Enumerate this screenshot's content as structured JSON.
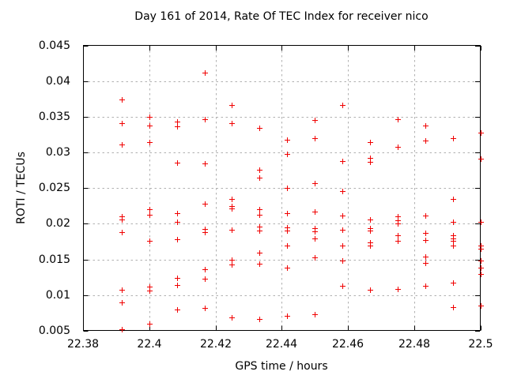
{
  "chart_data": {
    "type": "scatter",
    "title": "Day 161 of 2014, Rate Of TEC Index for receiver nico",
    "xlabel": "GPS time / hours",
    "ylabel": "ROTI / TECUs",
    "xlim": [
      22.38,
      22.5
    ],
    "ylim": [
      0.005,
      0.045
    ],
    "grid": true,
    "legend": "none",
    "marker_shape": "plus",
    "colors": {
      "marker": "#f00000",
      "grid": "#b0b0b0",
      "axis": "#000000",
      "text": "#000000",
      "background": "#ffffff"
    },
    "x_ticks": [
      {
        "value": 22.38,
        "label": "22.38"
      },
      {
        "value": 22.4,
        "label": "22.4"
      },
      {
        "value": 22.42,
        "label": "22.42"
      },
      {
        "value": 22.44,
        "label": "22.44"
      },
      {
        "value": 22.46,
        "label": "22.46"
      },
      {
        "value": 22.48,
        "label": "22.48"
      },
      {
        "value": 22.5,
        "label": "22.5"
      }
    ],
    "y_ticks": [
      {
        "value": 0.005,
        "label": "0.005"
      },
      {
        "value": 0.01,
        "label": "0.01"
      },
      {
        "value": 0.015,
        "label": "0.015"
      },
      {
        "value": 0.02,
        "label": "0.02"
      },
      {
        "value": 0.025,
        "label": "0.025"
      },
      {
        "value": 0.03,
        "label": "0.03"
      },
      {
        "value": 0.035,
        "label": "0.035"
      },
      {
        "value": 0.04,
        "label": "0.04"
      },
      {
        "value": 0.045,
        "label": "0.045"
      }
    ],
    "series": [
      {
        "name": "ROTI",
        "points": [
          [
            22.3917,
            0.0374
          ],
          [
            22.3917,
            0.0341
          ],
          [
            22.3917,
            0.0311
          ],
          [
            22.3917,
            0.021
          ],
          [
            22.3917,
            0.0206
          ],
          [
            22.3917,
            0.0188
          ],
          [
            22.3917,
            0.0107
          ],
          [
            22.3917,
            0.009
          ],
          [
            22.3917,
            0.0052
          ],
          [
            22.4,
            0.035
          ],
          [
            22.4,
            0.0338
          ],
          [
            22.4,
            0.0314
          ],
          [
            22.4,
            0.022
          ],
          [
            22.4,
            0.0213
          ],
          [
            22.4,
            0.0176
          ],
          [
            22.4,
            0.0112
          ],
          [
            22.4,
            0.0106
          ],
          [
            22.4,
            0.006
          ],
          [
            22.4083,
            0.0343
          ],
          [
            22.4083,
            0.0337
          ],
          [
            22.4083,
            0.0286
          ],
          [
            22.4083,
            0.0215
          ],
          [
            22.4083,
            0.0203
          ],
          [
            22.4083,
            0.0178
          ],
          [
            22.4083,
            0.0124
          ],
          [
            22.4083,
            0.0114
          ],
          [
            22.4083,
            0.008
          ],
          [
            22.4167,
            0.0412
          ],
          [
            22.4167,
            0.0346
          ],
          [
            22.4167,
            0.0285
          ],
          [
            22.4167,
            0.0228
          ],
          [
            22.4167,
            0.0193
          ],
          [
            22.4167,
            0.0188
          ],
          [
            22.4167,
            0.0136
          ],
          [
            22.4167,
            0.0123
          ],
          [
            22.4167,
            0.0082
          ],
          [
            22.425,
            0.0366
          ],
          [
            22.425,
            0.0341
          ],
          [
            22.425,
            0.0235
          ],
          [
            22.425,
            0.0225
          ],
          [
            22.425,
            0.0222
          ],
          [
            22.425,
            0.0192
          ],
          [
            22.425,
            0.015
          ],
          [
            22.425,
            0.0143
          ],
          [
            22.425,
            0.0069
          ],
          [
            22.4333,
            0.0334
          ],
          [
            22.4333,
            0.0276
          ],
          [
            22.4333,
            0.0265
          ],
          [
            22.4333,
            0.022
          ],
          [
            22.4333,
            0.0213
          ],
          [
            22.4333,
            0.0196
          ],
          [
            22.4333,
            0.0191
          ],
          [
            22.4333,
            0.016
          ],
          [
            22.4333,
            0.0144
          ],
          [
            22.4333,
            0.0067
          ],
          [
            22.4417,
            0.0318
          ],
          [
            22.4417,
            0.0298
          ],
          [
            22.4417,
            0.025
          ],
          [
            22.4417,
            0.0215
          ],
          [
            22.4417,
            0.0195
          ],
          [
            22.4417,
            0.019
          ],
          [
            22.4417,
            0.017
          ],
          [
            22.4417,
            0.0138
          ],
          [
            22.4417,
            0.0071
          ],
          [
            22.45,
            0.0345
          ],
          [
            22.45,
            0.032
          ],
          [
            22.45,
            0.0257
          ],
          [
            22.45,
            0.0217
          ],
          [
            22.45,
            0.0194
          ],
          [
            22.45,
            0.0189
          ],
          [
            22.45,
            0.0179
          ],
          [
            22.45,
            0.0153
          ],
          [
            22.45,
            0.0073
          ],
          [
            22.4583,
            0.0366
          ],
          [
            22.4583,
            0.0288
          ],
          [
            22.4583,
            0.0246
          ],
          [
            22.4583,
            0.0211
          ],
          [
            22.4583,
            0.0192
          ],
          [
            22.4583,
            0.0169
          ],
          [
            22.4583,
            0.0148
          ],
          [
            22.4583,
            0.0113
          ],
          [
            22.4667,
            0.0314
          ],
          [
            22.4667,
            0.0292
          ],
          [
            22.4667,
            0.0287
          ],
          [
            22.4667,
            0.0206
          ],
          [
            22.4667,
            0.0194
          ],
          [
            22.4667,
            0.019
          ],
          [
            22.4667,
            0.0174
          ],
          [
            22.4667,
            0.0169
          ],
          [
            22.4667,
            0.0107
          ],
          [
            22.475,
            0.0346
          ],
          [
            22.475,
            0.0308
          ],
          [
            22.475,
            0.021
          ],
          [
            22.475,
            0.0205
          ],
          [
            22.475,
            0.02
          ],
          [
            22.475,
            0.0184
          ],
          [
            22.475,
            0.0176
          ],
          [
            22.475,
            0.0109
          ],
          [
            22.4833,
            0.0338
          ],
          [
            22.4833,
            0.0317
          ],
          [
            22.4833,
            0.0211
          ],
          [
            22.4833,
            0.0187
          ],
          [
            22.4833,
            0.0177
          ],
          [
            22.4833,
            0.0154
          ],
          [
            22.4833,
            0.0145
          ],
          [
            22.4833,
            0.0113
          ],
          [
            22.4917,
            0.032
          ],
          [
            22.4917,
            0.0235
          ],
          [
            22.4917,
            0.0203
          ],
          [
            22.4917,
            0.0184
          ],
          [
            22.4917,
            0.018
          ],
          [
            22.4917,
            0.0176
          ],
          [
            22.4917,
            0.0169
          ],
          [
            22.4917,
            0.0117
          ],
          [
            22.4917,
            0.0083
          ],
          [
            22.5,
            0.0328
          ],
          [
            22.5,
            0.0291
          ],
          [
            22.5,
            0.0203
          ],
          [
            22.5,
            0.017
          ],
          [
            22.5,
            0.0165
          ],
          [
            22.5,
            0.0148
          ],
          [
            22.5,
            0.0139
          ],
          [
            22.5,
            0.013
          ],
          [
            22.5,
            0.0085
          ]
        ]
      }
    ]
  }
}
